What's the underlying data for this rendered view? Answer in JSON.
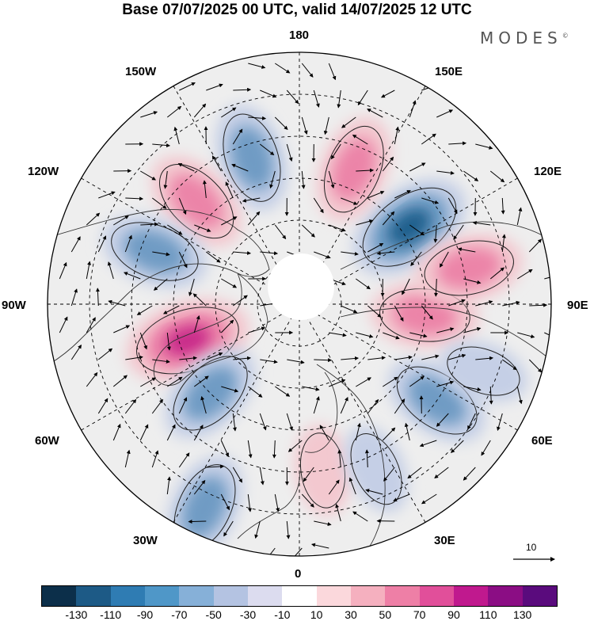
{
  "title": "Base 07/07/2025 00 UTC, valid 14/07/2025 12 UTC",
  "brand": "MODES",
  "brand_mark": "©",
  "longitude_labels": {
    "top": "180",
    "bottom": "0",
    "left": "90W",
    "right": "90E",
    "nw_upper": "150W",
    "nw_lower": "120W",
    "ne_upper": "150E",
    "ne_lower": "120E",
    "sw_upper": "60W",
    "sw_lower": "30W",
    "se_upper": "60E",
    "se_lower": "30E"
  },
  "reference_vector": {
    "value": "10"
  },
  "colors": {
    "neg_strong": "#1f5e8c",
    "neg_mid": "#6f9bc4",
    "neg_weak": "#c5cfe6",
    "pos_weak": "#f3c8cf",
    "pos_mid": "#ec84a8",
    "pos_strong": "#c92a8a",
    "land_outline": "#333333"
  },
  "colorbar": {
    "colors": [
      "#0c2f4a",
      "#1d5a86",
      "#2f7cb3",
      "#4f97c8",
      "#86b0d8",
      "#b4c3e2",
      "#dcdcef",
      "#ffffff",
      "#fbd8dc",
      "#f5b0bf",
      "#ee7fa6",
      "#e14f9a",
      "#c0198e",
      "#8b0d84",
      "#5a0b7d"
    ],
    "ticks": [
      "-130",
      "-110",
      "-90",
      "-70",
      "-50",
      "-30",
      "-10",
      "10",
      "30",
      "50",
      "70",
      "90",
      "110",
      "130"
    ]
  },
  "anomaly_centers": [
    {
      "lon_deg": 125,
      "colat_deg": 48,
      "sign": "neg",
      "strength": "strong"
    },
    {
      "lon_deg": 158,
      "colat_deg": 52,
      "sign": "pos",
      "strength": "mid"
    },
    {
      "lon_deg": -162,
      "colat_deg": 55,
      "sign": "neg",
      "strength": "mid"
    },
    {
      "lon_deg": -135,
      "colat_deg": 52,
      "sign": "pos",
      "strength": "mid"
    },
    {
      "lon_deg": -110,
      "colat_deg": 55,
      "sign": "neg",
      "strength": "mid"
    },
    {
      "lon_deg": -72,
      "colat_deg": 42,
      "sign": "pos",
      "strength": "strong"
    },
    {
      "lon_deg": -45,
      "colat_deg": 45,
      "sign": "neg",
      "strength": "mid"
    },
    {
      "lon_deg": -25,
      "colat_deg": 80,
      "sign": "neg",
      "strength": "mid"
    },
    {
      "lon_deg": 8,
      "colat_deg": 60,
      "sign": "pos",
      "strength": "weak"
    },
    {
      "lon_deg": 25,
      "colat_deg": 65,
      "sign": "neg",
      "strength": "weak"
    },
    {
      "lon_deg": 55,
      "colat_deg": 60,
      "sign": "neg",
      "strength": "mid"
    },
    {
      "lon_deg": 85,
      "colat_deg": 45,
      "sign": "pos",
      "strength": "mid"
    },
    {
      "lon_deg": 102,
      "colat_deg": 62,
      "sign": "pos",
      "strength": "mid"
    },
    {
      "lon_deg": 70,
      "colat_deg": 70,
      "sign": "neg",
      "strength": "weak"
    }
  ]
}
